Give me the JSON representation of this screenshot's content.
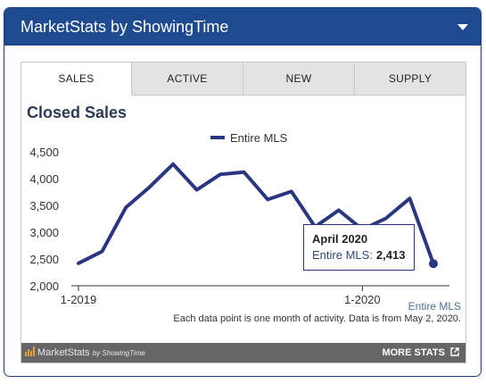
{
  "header": {
    "title": "MarketStats by ShowingTime"
  },
  "tabs": [
    "SALES",
    "ACTIVE",
    "NEW",
    "SUPPLY"
  ],
  "chart_title": "Closed Sales",
  "tooltip": {
    "title": "April 2020",
    "series_label": "Entire MLS:",
    "value": "2,413"
  },
  "footer": {
    "series_name": "Entire MLS",
    "note": "Each data point is one month of activity. Data is from May 2, 2020."
  },
  "brand": {
    "market": "MarketStats",
    "by": "by ShowingTime"
  },
  "more_stats": "MORE STATS",
  "colors": {
    "header": "#1e4b8f",
    "series": "#2a3680",
    "footer_bar": "#666666"
  },
  "chart_data": {
    "type": "line",
    "legend": "Entire MLS",
    "x": [
      "1-2019",
      "2-2019",
      "3-2019",
      "4-2019",
      "5-2019",
      "6-2019",
      "7-2019",
      "8-2019",
      "9-2019",
      "10-2019",
      "11-2019",
      "12-2019",
      "1-2020",
      "2-2020",
      "3-2020",
      "4-2020"
    ],
    "x_tick_labels": [
      "1-2019",
      "1-2020"
    ],
    "y_tick_labels": [
      "4,500",
      "4,000",
      "3,500",
      "3,000",
      "2,500",
      "2,000"
    ],
    "ylim": [
      2000,
      4500
    ],
    "series": [
      {
        "name": "Entire MLS",
        "values": [
          2420,
          2640,
          3460,
          3840,
          4270,
          3790,
          4080,
          4120,
          3610,
          3760,
          3100,
          3410,
          3050,
          3260,
          3630,
          2413
        ]
      }
    ],
    "grid": false
  }
}
